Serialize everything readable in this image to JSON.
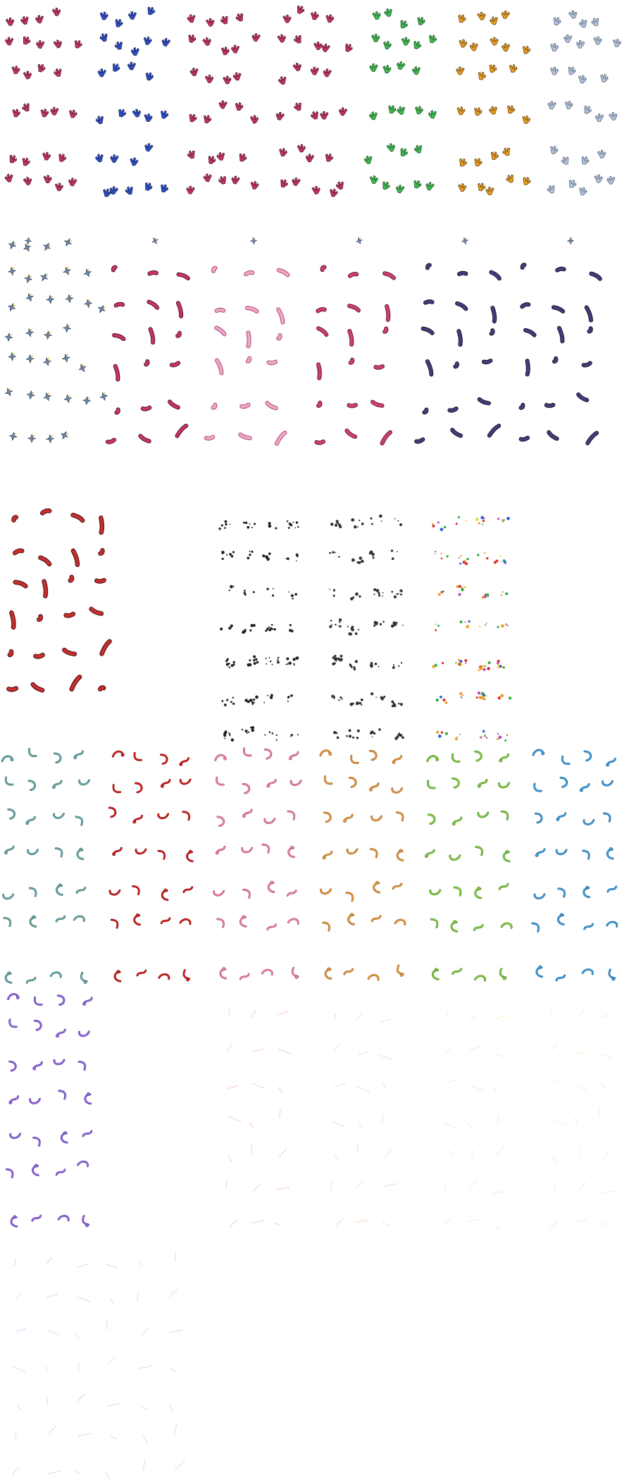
{
  "sheet": {
    "kind": "sprite-sheet",
    "background": "#ffffff",
    "sections": [
      {
        "id": "wing-sprites",
        "shape": "wing",
        "rows": 6,
        "variants": [
          {
            "name": "magenta",
            "fill": "#c8336b",
            "stroke": "#5a1530"
          },
          {
            "name": "blue",
            "fill": "#2f4fc8",
            "stroke": "#152466"
          },
          {
            "name": "magenta-2",
            "fill": "#c8336b",
            "stroke": "#5a1530"
          },
          {
            "name": "magenta-3",
            "fill": "#c8336b",
            "stroke": "#5a1530"
          },
          {
            "name": "green",
            "fill": "#3fbf50",
            "stroke": "#1d5a24"
          },
          {
            "name": "orange",
            "fill": "#f0a020",
            "stroke": "#6a4408"
          },
          {
            "name": "pale-blue",
            "fill": "#b9c7dc",
            "stroke": "#5b6a80"
          }
        ]
      },
      {
        "id": "sparkle-sprites",
        "shape": "sparkle",
        "rows": 6,
        "variants": [
          {
            "name": "slate",
            "fill": "#6f8aa8",
            "stroke": "#2f3b4a"
          }
        ]
      },
      {
        "id": "tentacle-sprites",
        "shape": "tentacle",
        "rows": 7,
        "variants": [
          {
            "name": "crimson",
            "fill": "#c8336b",
            "stroke": "#5a1530"
          },
          {
            "name": "pink",
            "fill": "#f0a8c8",
            "stroke": "#b0507a"
          },
          {
            "name": "rose",
            "fill": "#d04070",
            "stroke": "#6a1a36"
          },
          {
            "name": "indigo",
            "fill": "#4a3a78",
            "stroke": "#1f1538"
          },
          {
            "name": "red",
            "fill": "#c83030",
            "stroke": "#5a1010"
          }
        ]
      },
      {
        "id": "particle-sprites",
        "shape": "particle",
        "rows": 7,
        "variants": [
          {
            "name": "black",
            "fill": "#222222",
            "stroke": "#000000"
          },
          {
            "name": "gray-black",
            "fill": "#333333",
            "stroke": "#000000"
          },
          {
            "name": "rainbow",
            "fill": "#c040c0",
            "stroke": "#4a104a"
          }
        ]
      },
      {
        "id": "swirl-sprites",
        "shape": "swirl",
        "rows": 7,
        "variants": [
          {
            "name": "teal",
            "fill": "#6fb0b0",
            "stroke": "#2f6060"
          },
          {
            "name": "red",
            "fill": "#e02020",
            "stroke": "#700000"
          },
          {
            "name": "pink",
            "fill": "#f088b0",
            "stroke": "#a04060"
          },
          {
            "name": "orange",
            "fill": "#f0a040",
            "stroke": "#8a5010"
          },
          {
            "name": "lime",
            "fill": "#88d840",
            "stroke": "#3a7010"
          },
          {
            "name": "sky",
            "fill": "#40a8e8",
            "stroke": "#10508a"
          },
          {
            "name": "violet",
            "fill": "#9a6ee8",
            "stroke": "#4a2a90"
          }
        ]
      },
      {
        "id": "dot-trail-sprites",
        "shape": "dot-trail",
        "rows": 7,
        "variants": [
          {
            "name": "faint-pink",
            "fill": "#f0a0b8",
            "stroke": "#c07088"
          },
          {
            "name": "faint-peach",
            "fill": "#f3c2a0",
            "stroke": "#c09070"
          },
          {
            "name": "faint-cream",
            "fill": "#f2dcae",
            "stroke": "#c0a070"
          },
          {
            "name": "faint-violet",
            "fill": "#c8b8f0",
            "stroke": "#8878c0"
          }
        ]
      }
    ]
  }
}
